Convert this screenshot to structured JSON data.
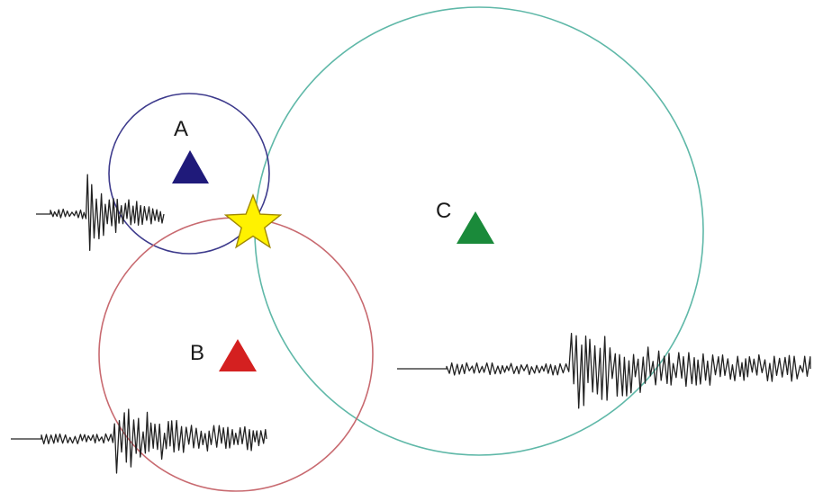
{
  "stations": [
    {
      "id": "A",
      "label": "A",
      "color": "#1f1a7a",
      "ring_color": "#3d3a8c"
    },
    {
      "id": "B",
      "label": "B",
      "color": "#d42020",
      "ring_color": "#c86a70"
    },
    {
      "id": "C",
      "label": "C",
      "color": "#1a8a3a",
      "ring_color": "#5fb8a8"
    }
  ],
  "epicenter": {
    "fill": "#fff200",
    "stroke": "#a08800"
  }
}
